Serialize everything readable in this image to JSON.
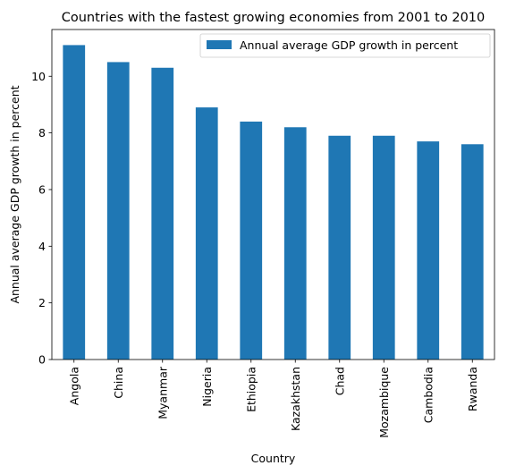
{
  "chart_data": {
    "type": "bar",
    "title": "Countries with the fastest growing economies from 2001 to 2010",
    "xlabel": "Country",
    "ylabel": "Annual average GDP growth in percent",
    "categories": [
      "Angola",
      "China",
      "Myanmar",
      "Nigeria",
      "Ethiopia",
      "Kazakhstan",
      "Chad",
      "Mozambique",
      "Cambodia",
      "Rwanda"
    ],
    "series": [
      {
        "name": "Annual average GDP growth in percent",
        "color": "#1f77b4",
        "values": [
          11.1,
          10.5,
          10.3,
          8.9,
          8.4,
          8.2,
          7.9,
          7.9,
          7.7,
          7.6
        ]
      }
    ],
    "ylim": [
      0,
      11.65
    ],
    "yticks": [
      0,
      2,
      4,
      6,
      8,
      10
    ],
    "grid": false,
    "legend_position": "top-right"
  }
}
